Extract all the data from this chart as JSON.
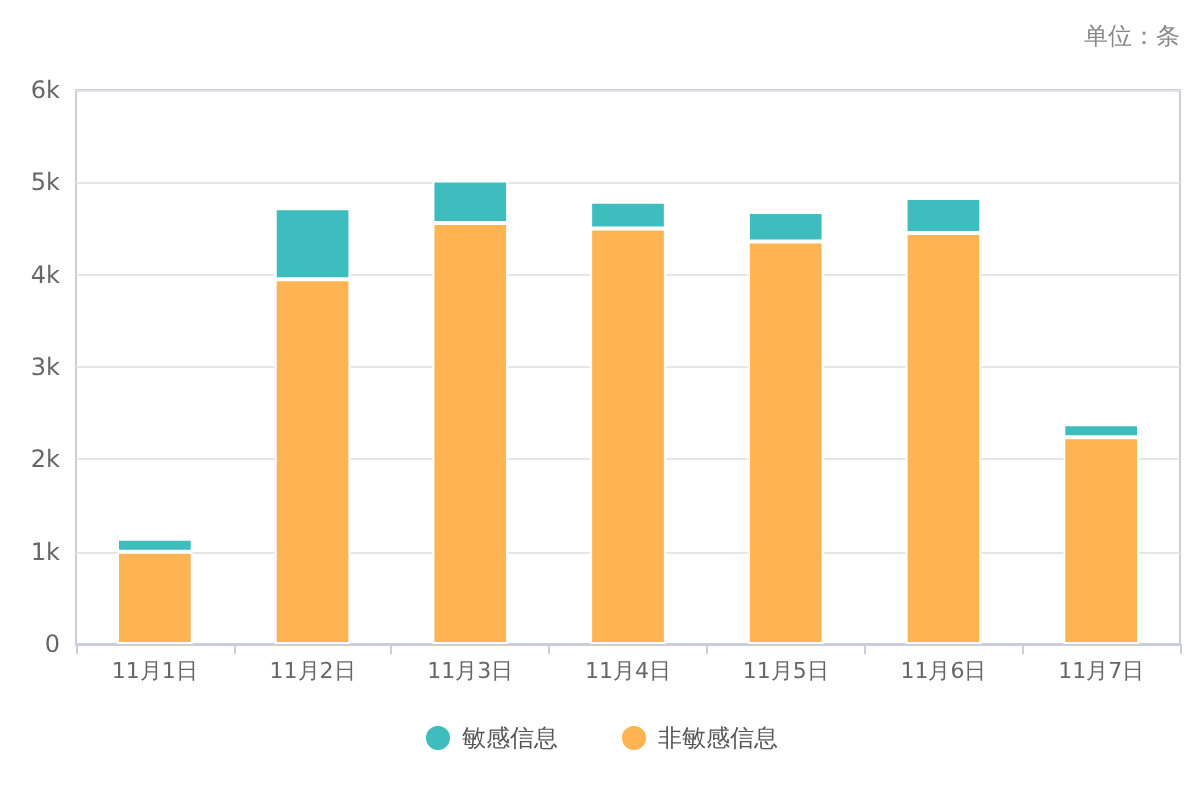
{
  "chart_data": {
    "type": "bar",
    "stacked": true,
    "categories": [
      "11月1日",
      "11月2日",
      "11月3日",
      "11月4日",
      "11月5日",
      "11月6日",
      "11月7日"
    ],
    "series": [
      {
        "name": "非敏感信息",
        "color": "#ffb453",
        "values": [
          1000,
          3950,
          4560,
          4500,
          4360,
          4450,
          2240
        ]
      },
      {
        "name": "敏感信息",
        "color": "#3dbdbd",
        "values": [
          140,
          770,
          460,
          290,
          320,
          380,
          140
        ]
      }
    ],
    "ylim": [
      0,
      6000
    ],
    "yticks": [
      0,
      {
        "value": 1000,
        "label": "1k"
      },
      {
        "value": 2000,
        "label": "2k"
      },
      {
        "value": 3000,
        "label": "3k"
      },
      {
        "value": 4000,
        "label": "4k"
      },
      {
        "value": 5000,
        "label": "5k"
      },
      {
        "value": 6000,
        "label": "6k"
      }
    ],
    "grid": "y",
    "legend": "bottom",
    "annotations": [
      "单位：条"
    ]
  }
}
